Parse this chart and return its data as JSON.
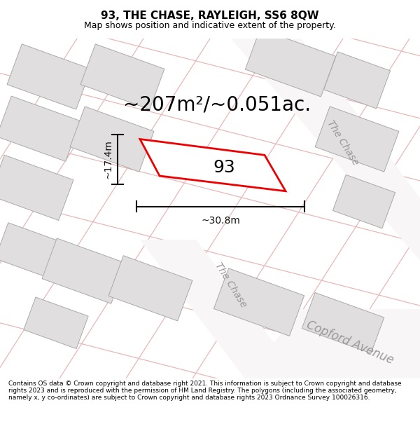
{
  "title": "93, THE CHASE, RAYLEIGH, SS6 8QW",
  "subtitle": "Map shows position and indicative extent of the property.",
  "area_text": "~207m²/~0.051ac.",
  "label_93": "93",
  "dim_width": "~30.8m",
  "dim_height": "~17.4m",
  "road_label_upper": "The Chase",
  "road_label_lower": "The Chase",
  "road_label_avenue": "Copford Avenue",
  "footer": "Contains OS data © Crown copyright and database right 2021. This information is subject to Crown copyright and database rights 2023 and is reproduced with the permission of HM Land Registry. The polygons (including the associated geometry, namely x, y co-ordinates) are subject to Crown copyright and database rights 2023 Ordnance Survey 100026316.",
  "map_bg": "#f0eeee",
  "building_fill": "#e0dede",
  "building_edge": "#aaaaaa",
  "road_line_color": "#e8b8b8",
  "plot_fill": "#ffffff",
  "plot_edge": "#ee0000",
  "plot_edge_lw": 2.0,
  "dim_color": "#111111",
  "road_text_color": "#999999",
  "title_fontsize": 11,
  "subtitle_fontsize": 9,
  "area_fontsize": 20,
  "label_fontsize": 18,
  "road_fontsize": 10,
  "footer_fontsize": 6.5
}
